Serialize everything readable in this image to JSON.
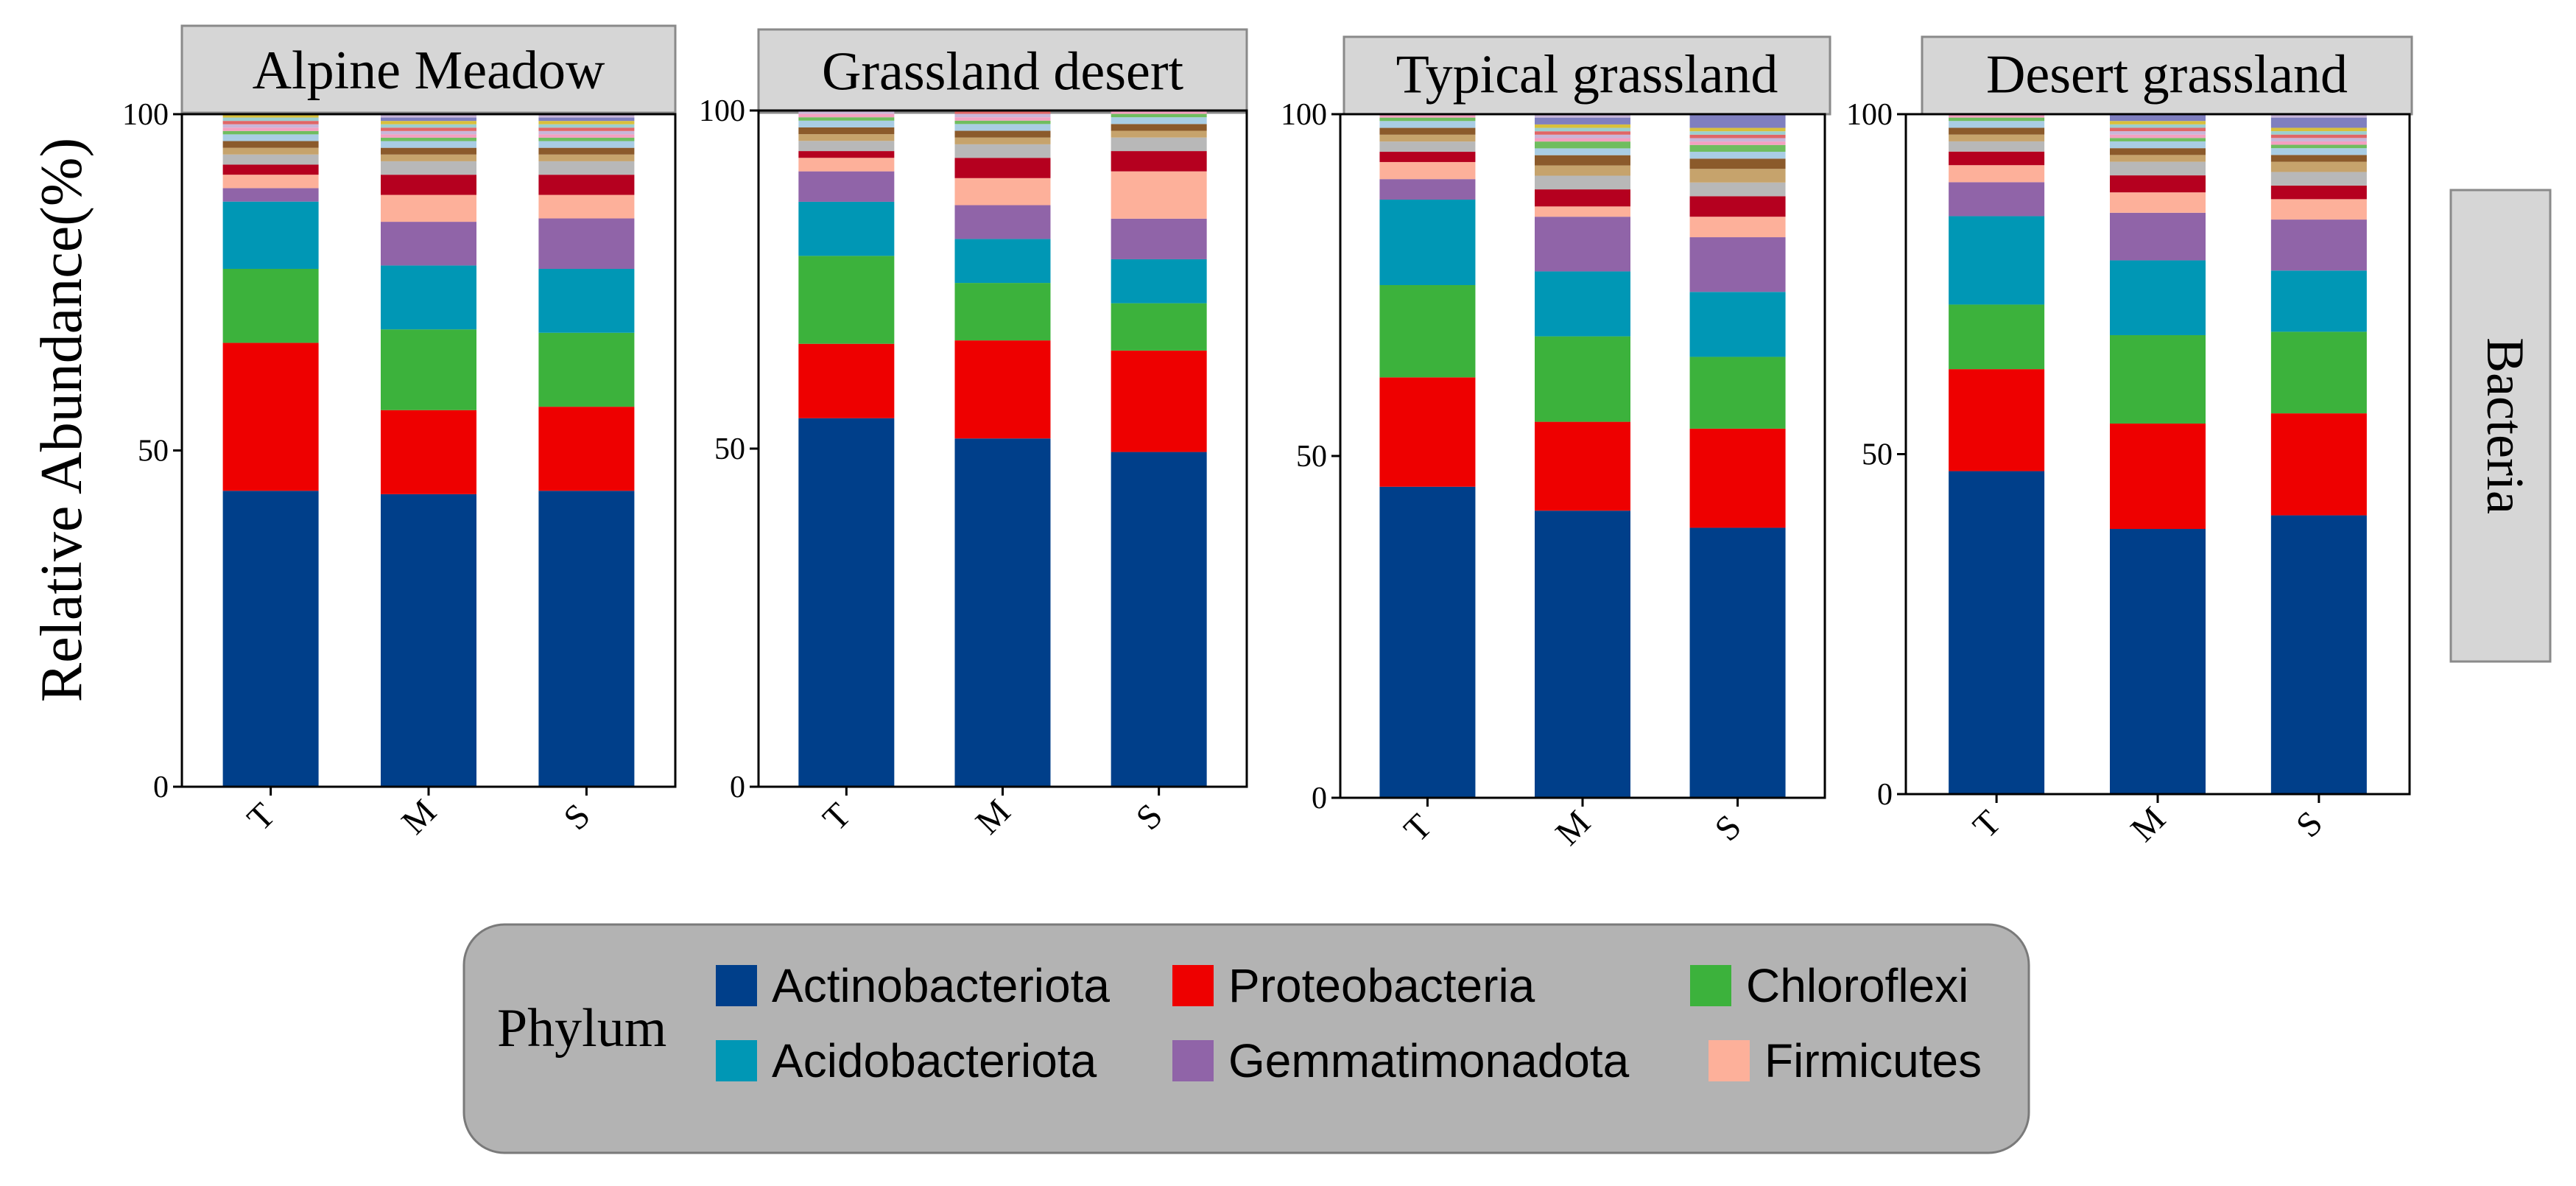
{
  "figure": {
    "y_axis_label": "Relative Abundance(%)",
    "row_label": "Bacteria"
  },
  "legend": {
    "title": "Phylum",
    "items": [
      {
        "name": "Actinobacteriota",
        "color": "#003f8a"
      },
      {
        "name": "Proteobacteria",
        "color": "#ee0000"
      },
      {
        "name": "Chloroflexi",
        "color": "#3cb23c"
      },
      {
        "name": "Acidobacteriota",
        "color": "#0097b5"
      },
      {
        "name": "Gemmatimonadota",
        "color": "#9064a8"
      },
      {
        "name": "Firmicutes",
        "color": "#fdb09a"
      }
    ]
  },
  "minor_colors": [
    "#b5001f",
    "#b8b8b8",
    "#c6a36c",
    "#8b5a2b",
    "#a9cde4",
    "#6fbd5f",
    "#f4a0c0",
    "#c9b6d8",
    "#e06666",
    "#9ccfcf",
    "#d8c03c",
    "#7f7fbf"
  ],
  "chart_data": [
    {
      "type": "bar",
      "stacked": true,
      "title": "Alpine Meadow",
      "categories": [
        "T",
        "M",
        "S"
      ],
      "ylim": [
        0,
        100
      ],
      "yticks": [
        "0",
        "50",
        "100"
      ],
      "series": [
        {
          "name": "Actinobacteriota",
          "values": [
            44,
            43.5,
            44
          ]
        },
        {
          "name": "Proteobacteria",
          "values": [
            22,
            12.5,
            12.5
          ]
        },
        {
          "name": "Chloroflexi",
          "values": [
            11,
            12,
            11
          ]
        },
        {
          "name": "Acidobacteriota",
          "values": [
            10,
            9.5,
            9.5
          ]
        },
        {
          "name": "Gemmatimonadota",
          "values": [
            2,
            6.5,
            7.5
          ]
        },
        {
          "name": "Firmicutes",
          "values": [
            2,
            4,
            3.5
          ]
        }
      ],
      "other_segments": [
        [
          1.5,
          1.5,
          1,
          1,
          1,
          0.5,
          0.5,
          0.5,
          0.5,
          0.5,
          0.5,
          0.5
        ],
        [
          3,
          2,
          1,
          1,
          1,
          0.5,
          0.5,
          0.5,
          0.5,
          0.5,
          0.5,
          0.5
        ],
        [
          3,
          2,
          1,
          1,
          1,
          0.5,
          0.5,
          0.5,
          0.5,
          0.5,
          0.5,
          0.5
        ]
      ]
    },
    {
      "type": "bar",
      "stacked": true,
      "title": "Grassland desert",
      "categories": [
        "T",
        "M",
        "S"
      ],
      "ylim": [
        0,
        100
      ],
      "yticks": [
        "0",
        "50",
        "100"
      ],
      "series": [
        {
          "name": "Actinobacteriota",
          "values": [
            54.5,
            51.5,
            49.5
          ]
        },
        {
          "name": "Proteobacteria",
          "values": [
            11,
            14.5,
            15
          ]
        },
        {
          "name": "Chloroflexi",
          "values": [
            13,
            8.5,
            7
          ]
        },
        {
          "name": "Acidobacteriota",
          "values": [
            8,
            6.5,
            6.5
          ]
        },
        {
          "name": "Gemmatimonadota",
          "values": [
            4.5,
            5,
            6
          ]
        },
        {
          "name": "Firmicutes",
          "values": [
            2,
            4,
            7
          ]
        }
      ],
      "other_segments": [
        [
          1,
          1.5,
          1,
          1,
          1,
          0.5,
          0.5,
          0.5,
          0.5,
          0.5,
          0.5,
          0.5
        ],
        [
          3,
          2,
          1,
          1,
          1,
          0.5,
          0.5,
          0.5,
          0.5,
          0.5,
          0.5,
          0.5
        ],
        [
          3,
          2,
          1,
          1,
          1,
          0.5,
          0.5,
          0.5,
          0.5,
          0.5,
          0.5,
          0.5
        ]
      ]
    },
    {
      "type": "bar",
      "stacked": true,
      "title": "Typical grassland",
      "categories": [
        "T",
        "M",
        "S"
      ],
      "ylim": [
        0,
        100
      ],
      "yticks": [
        "0",
        "50",
        "100"
      ],
      "series": [
        {
          "name": "Actinobacteriota",
          "values": [
            45.5,
            42,
            39.5
          ]
        },
        {
          "name": "Proteobacteria",
          "values": [
            16,
            13,
            14.5
          ]
        },
        {
          "name": "Chloroflexi",
          "values": [
            13.5,
            12.5,
            10.5
          ]
        },
        {
          "name": "Acidobacteriota",
          "values": [
            12.5,
            9.5,
            9.5
          ]
        },
        {
          "name": "Gemmatimonadota",
          "values": [
            3,
            8,
            8
          ]
        },
        {
          "name": "Firmicutes",
          "values": [
            2.5,
            1.5,
            3
          ]
        }
      ],
      "other_segments": [
        [
          1.5,
          1.5,
          1,
          1,
          1,
          0.5,
          0.5,
          0.5,
          0.5,
          0.5,
          0.5,
          0.5
        ],
        [
          2.5,
          2,
          1.5,
          1.5,
          1,
          1,
          0.5,
          0.5,
          0.5,
          0.5,
          0.5,
          1
        ],
        [
          3,
          2,
          2,
          1.5,
          1,
          1,
          0.5,
          0.5,
          0.5,
          0.5,
          0.5,
          3
        ]
      ]
    },
    {
      "type": "bar",
      "stacked": true,
      "title": "Desert grassland",
      "categories": [
        "T",
        "M",
        "S"
      ],
      "ylim": [
        0,
        100
      ],
      "yticks": [
        "0",
        "50",
        "100"
      ],
      "series": [
        {
          "name": "Actinobacteriota",
          "values": [
            47.5,
            39,
            41
          ]
        },
        {
          "name": "Proteobacteria",
          "values": [
            15,
            15.5,
            15
          ]
        },
        {
          "name": "Chloroflexi",
          "values": [
            9.5,
            13,
            12
          ]
        },
        {
          "name": "Acidobacteriota",
          "values": [
            13,
            11,
            9
          ]
        },
        {
          "name": "Gemmatimonadota",
          "values": [
            5,
            7,
            7.5
          ]
        },
        {
          "name": "Firmicutes",
          "values": [
            2.5,
            3,
            3
          ]
        }
      ],
      "other_segments": [
        [
          2,
          1.5,
          1,
          1,
          1,
          0.5,
          0.5,
          0.5,
          0.5,
          0.5,
          0.5,
          0.5
        ],
        [
          2.5,
          2,
          1,
          1,
          1,
          0.5,
          0.5,
          0.5,
          0.5,
          0.5,
          0.5,
          1
        ],
        [
          2,
          2,
          1.5,
          1,
          1,
          0.5,
          0.5,
          0.5,
          0.5,
          0.5,
          0.5,
          1.5
        ]
      ]
    }
  ]
}
